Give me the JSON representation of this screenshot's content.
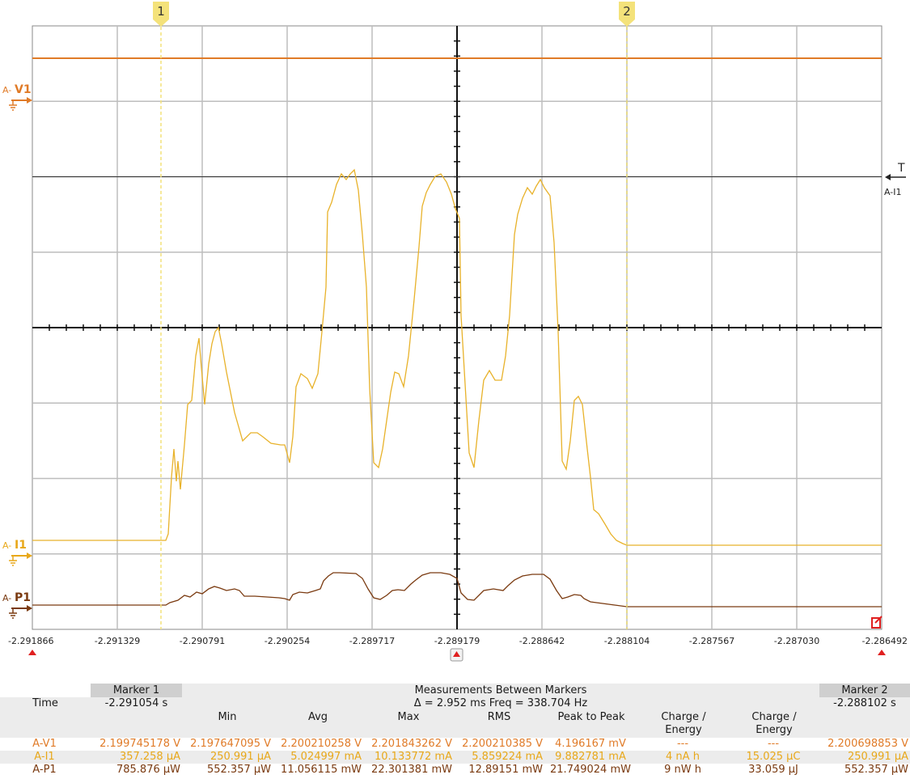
{
  "markers": {
    "m1_label": "1",
    "m2_label": "2"
  },
  "channels": {
    "v1": {
      "prefix": "A-",
      "name": "V1",
      "color": "#e07b28"
    },
    "i1": {
      "prefix": "A-",
      "name": "I1",
      "color": "#e8b22a"
    },
    "p1": {
      "prefix": "A-",
      "name": "P1",
      "color": "#7a3a10"
    }
  },
  "trigger": {
    "label": "T",
    "source": "A-I1"
  },
  "x_ticks": [
    "-2.291866",
    "-2.291329",
    "-2.290791",
    "-2.290254",
    "-2.289717",
    "-2.289179",
    "-2.288642",
    "-2.288104",
    "-2.287567",
    "-2.287030",
    "-2.286492"
  ],
  "chart_data": {
    "type": "line",
    "xlabel": "",
    "ylabel": "",
    "x": [
      "-2.291866",
      "-2.291329",
      "-2.290791",
      "-2.290254",
      "-2.289717",
      "-2.289179",
      "-2.288642",
      "-2.288104",
      "-2.287567",
      "-2.287030",
      "-2.286492"
    ],
    "grid": true,
    "series": [
      {
        "name": "A-V1",
        "note_level_div": 3.6
      },
      {
        "name": "A-I1"
      },
      {
        "name": "A-P1"
      }
    ]
  },
  "table": {
    "marker1_header": "Marker 1",
    "between_header": "Measurements Between Markers",
    "marker2_header": "Marker 2",
    "time_label": "Time",
    "marker1_time": "-2.291054 s",
    "delta_text": "Δ = 2.952 ms   Freq = 338.704 Hz",
    "marker2_time": "-2.288102 s",
    "col_min": "Min",
    "col_avg": "Avg",
    "col_max": "Max",
    "col_rms": "RMS",
    "col_p2p": "Peak to Peak",
    "col_charge1_a": "Charge /",
    "col_charge1_b": "Energy",
    "col_charge2_a": "Charge /",
    "col_charge2_b": "Energy",
    "rows": [
      {
        "name": "A-V1",
        "m1": "2.199745178 V",
        "min": "2.197647095 V",
        "avg": "2.200210258 V",
        "max": "2.201843262 V",
        "rms": "2.200210385 V",
        "p2p": "4.196167 mV",
        "ce1": "---",
        "ce2": "---",
        "m2": "2.200698853 V"
      },
      {
        "name": "A-I1",
        "m1": "357.258 µA",
        "min": "250.991 µA",
        "avg": "5.024997 mA",
        "max": "10.133772 mA",
        "rms": "5.859224 mA",
        "p2p": "9.882781 mA",
        "ce1": "4 nA h",
        "ce2": "15.025 µC",
        "m2": "250.991 µA"
      },
      {
        "name": "A-P1",
        "m1": "785.876 µW",
        "min": "552.357 µW",
        "avg": "11.056115 mW",
        "max": "22.301381 mW",
        "rms": "12.89151 mW",
        "p2p": "21.749024 mW",
        "ce1": "9 nW h",
        "ce2": "33.059 µJ",
        "m2": "552.357 µW"
      }
    ]
  }
}
